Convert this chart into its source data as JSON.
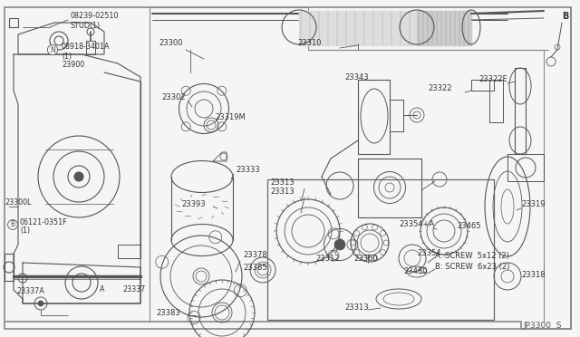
{
  "bg_color": "#f0f0f0",
  "line_color": "#555555",
  "text_color": "#333333",
  "diagram_id": "JP3300  S",
  "labels": {
    "stud_top": "08239-02510",
    "stud_label": "STUD(1)",
    "n_label": "08918-3401A",
    "n_sub": "(1)",
    "part_23900": "23900",
    "part_23300L": "23300L",
    "B_label": "B",
    "b_part": "06121-0351F",
    "b_sub": "(1)",
    "part_23337A": "23337A",
    "A_label": "A",
    "part_23337": "23337",
    "part_23300": "23300",
    "part_23302": "23302",
    "part_23319M": "23319M",
    "part_23333": "23333",
    "part_23393": "23393",
    "part_23378": "23378",
    "part_23385": "23385",
    "part_23383": "23383",
    "part_23310": "23310",
    "part_23343": "23343",
    "part_23313a": "23313",
    "part_23313b": "23313",
    "part_23312": "23312",
    "part_23360": "23360",
    "part_23313c": "23313",
    "part_23354A": "23354+A",
    "part_23354": "23354",
    "part_23480": "23480",
    "part_23465": "23465",
    "part_23319": "23319",
    "part_23318": "23318",
    "part_23322": "23322",
    "part_23322E": "23322E",
    "B_top": "B",
    "screw_A": "A: SCREW  5x12 (2)",
    "screw_B": "B: SCREW  6x23 (2)"
  }
}
